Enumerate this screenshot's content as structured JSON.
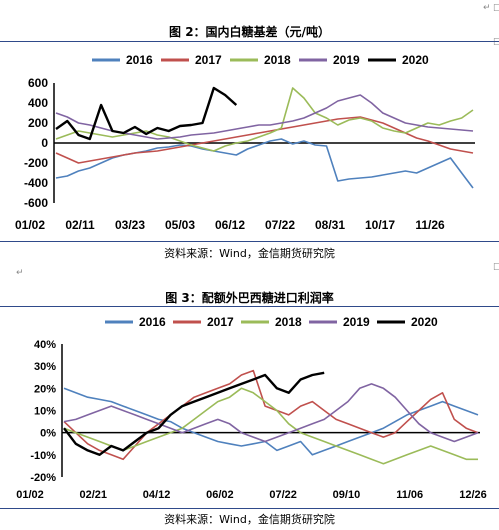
{
  "chart_data": [
    {
      "type": "line",
      "title": "图 2：国内白糖基差（元/吨）",
      "source": "资料来源：Wind，金信期货研究院",
      "series_colors": {
        "2016": "#4f81bd",
        "2017": "#c0504d",
        "2018": "#9bbb59",
        "2019": "#8064a2",
        "2020": "#000000"
      },
      "y_ticks": [
        "600",
        "400",
        "200",
        "0",
        "-200",
        "-400",
        "-600"
      ],
      "ylim": [
        -600,
        600
      ],
      "x_ticks": [
        "01/02",
        "02/11",
        "03/23",
        "05/03",
        "06/12",
        "07/22",
        "08/31",
        "10/17",
        "11/26"
      ],
      "legend_position": "top",
      "series": [
        {
          "name": "2016",
          "values": [
            -350,
            -330,
            -280,
            -250,
            -200,
            -150,
            -120,
            -100,
            -80,
            -50,
            -40,
            -20,
            -30,
            -60,
            -80,
            -100,
            -120,
            -60,
            -20,
            20,
            40,
            -10,
            20,
            -20,
            -30,
            -380,
            -360,
            -350,
            -340,
            -320,
            -300,
            -280,
            -300,
            -250,
            -200,
            -150,
            -300,
            -450
          ]
        },
        {
          "name": "2017",
          "values": [
            -100,
            -150,
            -200,
            -180,
            -160,
            -140,
            -120,
            -100,
            -90,
            -80,
            -60,
            -40,
            -20,
            0,
            20,
            40,
            60,
            80,
            100,
            120,
            140,
            160,
            180,
            200,
            220,
            240,
            250,
            260,
            230,
            200,
            150,
            100,
            50,
            20,
            -20,
            -60,
            -80,
            -100
          ]
        },
        {
          "name": "2018",
          "values": [
            40,
            80,
            120,
            100,
            80,
            60,
            80,
            100,
            120,
            80,
            60,
            20,
            -20,
            -50,
            -80,
            -30,
            0,
            20,
            60,
            100,
            150,
            550,
            450,
            300,
            250,
            180,
            230,
            250,
            220,
            150,
            120,
            100,
            150,
            200,
            180,
            220,
            250,
            330
          ]
        },
        {
          "name": "2019",
          "values": [
            300,
            260,
            200,
            180,
            150,
            120,
            100,
            80,
            60,
            40,
            50,
            60,
            80,
            90,
            100,
            120,
            140,
            160,
            180,
            180,
            200,
            220,
            250,
            300,
            350,
            420,
            450,
            480,
            400,
            300,
            250,
            200,
            180,
            160,
            150,
            140,
            130,
            120
          ]
        },
        {
          "name": "2020",
          "values": [
            140,
            220,
            80,
            40,
            380,
            120,
            100,
            160,
            90,
            150,
            120,
            170,
            180,
            200,
            550,
            480,
            380
          ]
        }
      ]
    },
    {
      "type": "line",
      "title": "图 3：配额外巴西糖进口利润率",
      "source": "资料来源：Wind，金信期货研究院",
      "y_ticks": [
        "40%",
        "30%",
        "20%",
        "10%",
        "0%",
        "-10%",
        "-20%"
      ],
      "ylim": [
        -20,
        40
      ],
      "x_ticks": [
        "01/02",
        "02/21",
        "04/12",
        "06/02",
        "07/22",
        "09/10",
        "11/06",
        "12/26"
      ],
      "legend_position": "top",
      "series": [
        {
          "name": "2016",
          "values": [
            20,
            18,
            16,
            15,
            14,
            12,
            10,
            8,
            6,
            5,
            2,
            0,
            -2,
            -4,
            -5,
            -6,
            -5,
            -4,
            -8,
            -6,
            -4,
            -10,
            -8,
            -6,
            -4,
            -2,
            0,
            2,
            5,
            8,
            10,
            12,
            14,
            12,
            10,
            8
          ]
        },
        {
          "name": "2017",
          "values": [
            5,
            0,
            -5,
            -8,
            -10,
            -12,
            -6,
            0,
            4,
            8,
            12,
            16,
            18,
            20,
            22,
            26,
            28,
            12,
            10,
            8,
            12,
            14,
            10,
            6,
            4,
            2,
            0,
            -2,
            0,
            5,
            10,
            15,
            18,
            6,
            2,
            0
          ]
        },
        {
          "name": "2018",
          "values": [
            2,
            0,
            -2,
            -4,
            -6,
            -8,
            -6,
            -4,
            -2,
            0,
            2,
            6,
            10,
            14,
            16,
            20,
            18,
            14,
            10,
            4,
            0,
            -2,
            -4,
            -6,
            -8,
            -10,
            -12,
            -14,
            -12,
            -10,
            -8,
            -6,
            -8,
            -10,
            -12,
            -12
          ]
        },
        {
          "name": "2019",
          "values": [
            5,
            6,
            8,
            10,
            12,
            10,
            8,
            6,
            4,
            2,
            0,
            2,
            4,
            6,
            4,
            0,
            -2,
            -4,
            -2,
            0,
            2,
            4,
            6,
            10,
            14,
            20,
            22,
            20,
            16,
            10,
            4,
            0,
            -2,
            -4,
            -2,
            0
          ]
        },
        {
          "name": "2020",
          "values": [
            2,
            -5,
            -8,
            -10,
            -6,
            -8,
            -4,
            0,
            2,
            8,
            12,
            14,
            16,
            18,
            20,
            22,
            24,
            26,
            20,
            18,
            24,
            26,
            27
          ]
        }
      ]
    }
  ]
}
